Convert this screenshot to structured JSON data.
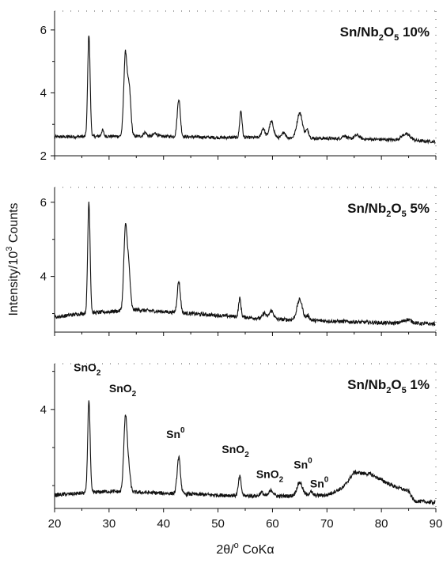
{
  "chart_data": [
    {
      "type": "line",
      "series_label": {
        "main": "Sn/Nb",
        "sub1": "2",
        "mid": "O",
        "sub2": "5",
        "tail": " 10%"
      },
      "xlim": [
        20,
        90
      ],
      "ylim": [
        2,
        6.6
      ],
      "yticks": [
        2,
        4,
        6
      ],
      "baseline": [
        [
          20,
          2.6
        ],
        [
          30,
          2.62
        ],
        [
          40,
          2.62
        ],
        [
          50,
          2.58
        ],
        [
          60,
          2.58
        ],
        [
          70,
          2.55
        ],
        [
          80,
          2.52
        ],
        [
          90,
          2.45
        ]
      ],
      "peaks": [
        {
          "x": 26.3,
          "h": 3.25,
          "w": 0.22
        },
        {
          "x": 28.8,
          "h": 0.2,
          "w": 0.2
        },
        {
          "x": 33.0,
          "h": 2.6,
          "w": 0.3
        },
        {
          "x": 33.7,
          "h": 1.5,
          "w": 0.3
        },
        {
          "x": 36.6,
          "h": 0.12,
          "w": 0.3
        },
        {
          "x": 38.5,
          "h": 0.1,
          "w": 0.3
        },
        {
          "x": 42.8,
          "h": 1.2,
          "w": 0.28
        },
        {
          "x": 54.2,
          "h": 0.85,
          "w": 0.22
        },
        {
          "x": 58.3,
          "h": 0.3,
          "w": 0.3
        },
        {
          "x": 59.8,
          "h": 0.5,
          "w": 0.4
        },
        {
          "x": 62.1,
          "h": 0.18,
          "w": 0.3
        },
        {
          "x": 65.0,
          "h": 0.8,
          "w": 0.5
        },
        {
          "x": 66.4,
          "h": 0.25,
          "w": 0.3
        },
        {
          "x": 73.2,
          "h": 0.1,
          "w": 0.4
        },
        {
          "x": 75.5,
          "h": 0.12,
          "w": 0.5
        },
        {
          "x": 84.5,
          "h": 0.2,
          "w": 0.8
        }
      ],
      "noise": 0.05
    },
    {
      "type": "line",
      "series_label": {
        "main": "Sn/Nb",
        "sub1": "2",
        "mid": "O",
        "sub2": "5",
        "tail": " 5%"
      },
      "xlim": [
        20,
        90
      ],
      "ylim": [
        2.5,
        6.4
      ],
      "yticks": [
        4,
        6
      ],
      "baseline": [
        [
          20,
          2.9
        ],
        [
          25,
          3.0
        ],
        [
          30,
          3.05
        ],
        [
          35,
          3.1
        ],
        [
          40,
          3.05
        ],
        [
          50,
          2.95
        ],
        [
          60,
          2.85
        ],
        [
          70,
          2.8
        ],
        [
          80,
          2.75
        ],
        [
          90,
          2.72
        ]
      ],
      "peaks": [
        {
          "x": 26.3,
          "h": 3.0,
          "w": 0.22
        },
        {
          "x": 33.0,
          "h": 2.15,
          "w": 0.3
        },
        {
          "x": 33.6,
          "h": 1.1,
          "w": 0.3
        },
        {
          "x": 42.8,
          "h": 0.85,
          "w": 0.28
        },
        {
          "x": 54.0,
          "h": 0.5,
          "w": 0.22
        },
        {
          "x": 58.5,
          "h": 0.15,
          "w": 0.3
        },
        {
          "x": 59.8,
          "h": 0.22,
          "w": 0.4
        },
        {
          "x": 65.0,
          "h": 0.55,
          "w": 0.5
        },
        {
          "x": 66.5,
          "h": 0.12,
          "w": 0.3
        },
        {
          "x": 84.8,
          "h": 0.1,
          "w": 0.8
        }
      ],
      "noise": 0.05
    },
    {
      "type": "line",
      "series_label": {
        "main": "Sn/Nb",
        "sub1": "2",
        "mid": "O",
        "sub2": "5",
        "tail": " 1%"
      },
      "xlim": [
        20,
        90
      ],
      "ylim": [
        1.4,
        5.2
      ],
      "yticks": [
        4
      ],
      "baseline": [
        [
          20,
          1.75
        ],
        [
          25,
          1.8
        ],
        [
          30,
          1.85
        ],
        [
          40,
          1.8
        ],
        [
          50,
          1.75
        ],
        [
          60,
          1.72
        ],
        [
          70,
          1.75
        ],
        [
          73,
          1.95
        ],
        [
          75,
          2.35
        ],
        [
          78,
          2.3
        ],
        [
          82,
          2.0
        ],
        [
          85,
          1.85
        ],
        [
          86,
          1.6
        ],
        [
          90,
          1.55
        ]
      ],
      "peaks": [
        {
          "x": 26.3,
          "h": 2.45,
          "w": 0.22
        },
        {
          "x": 33.0,
          "h": 1.95,
          "w": 0.3
        },
        {
          "x": 33.6,
          "h": 0.6,
          "w": 0.3
        },
        {
          "x": 42.8,
          "h": 0.95,
          "w": 0.3
        },
        {
          "x": 54.0,
          "h": 0.5,
          "w": 0.25
        },
        {
          "x": 58.0,
          "h": 0.1,
          "w": 0.3
        },
        {
          "x": 59.8,
          "h": 0.15,
          "w": 0.4
        },
        {
          "x": 65.0,
          "h": 0.35,
          "w": 0.5
        },
        {
          "x": 67.0,
          "h": 0.1,
          "w": 0.3
        }
      ],
      "noise": 0.05,
      "annotations": [
        {
          "main": "SnO",
          "sub": "2",
          "x": 26.0,
          "y": 5.0
        },
        {
          "main": "SnO",
          "sub": "2",
          "x": 32.5,
          "y": 4.45
        },
        {
          "main": "Sn",
          "sup": "0",
          "x": 42.2,
          "y": 3.25
        },
        {
          "main": "SnO",
          "sub": "2",
          "x": 53.2,
          "y": 2.85
        },
        {
          "main": "SnO",
          "sub": "2",
          "x": 59.5,
          "y": 2.2
        },
        {
          "main": "Sn",
          "sup": "0",
          "x": 65.6,
          "y": 2.45
        },
        {
          "main": "Sn",
          "sup": "0",
          "x": 68.6,
          "y": 1.95
        }
      ]
    }
  ],
  "shared_x": {
    "xticks": [
      20,
      30,
      40,
      50,
      60,
      70,
      80,
      90
    ],
    "xlabel": {
      "main": "2θ/",
      "sup": "o",
      "tail": " CoKα"
    }
  },
  "ylabel": {
    "main": "Intensity/10",
    "sup": "3",
    "tail": " Counts"
  }
}
